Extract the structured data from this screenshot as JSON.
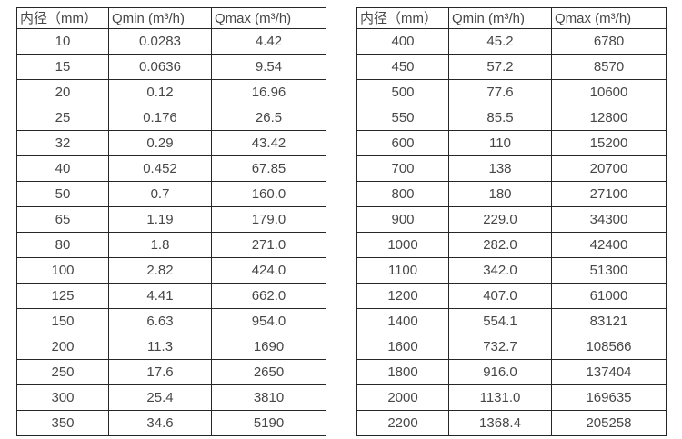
{
  "page": {
    "background_color": "#ffffff",
    "text_color": "#474747",
    "border_color": "#262626"
  },
  "tables": [
    {
      "name": "flow-table-small-diameters",
      "headers": [
        "内径（mm）",
        "Qmin (m³/h)",
        "Qmax (m³/h)"
      ],
      "rows": [
        [
          "10",
          "0.0283",
          "4.42"
        ],
        [
          "15",
          "0.0636",
          "9.54"
        ],
        [
          "20",
          "0.12",
          "16.96"
        ],
        [
          "25",
          "0.176",
          "26.5"
        ],
        [
          "32",
          "0.29",
          "43.42"
        ],
        [
          "40",
          "0.452",
          "67.85"
        ],
        [
          "50",
          "0.7",
          "160.0"
        ],
        [
          "65",
          "1.19",
          "179.0"
        ],
        [
          "80",
          "1.8",
          "271.0"
        ],
        [
          "100",
          "2.82",
          "424.0"
        ],
        [
          "125",
          "4.41",
          "662.0"
        ],
        [
          "150",
          "6.63",
          "954.0"
        ],
        [
          "200",
          "11.3",
          "1690"
        ],
        [
          "250",
          "17.6",
          "2650"
        ],
        [
          "300",
          "25.4",
          "3810"
        ],
        [
          "350",
          "34.6",
          "5190"
        ]
      ]
    },
    {
      "name": "flow-table-large-diameters",
      "headers": [
        "内径（mm）",
        "Qmin (m³/h)",
        "Qmax (m³/h)"
      ],
      "rows": [
        [
          "400",
          "45.2",
          "6780"
        ],
        [
          "450",
          "57.2",
          "8570"
        ],
        [
          "500",
          "77.6",
          "10600"
        ],
        [
          "550",
          "85.5",
          "12800"
        ],
        [
          "600",
          "110",
          "15200"
        ],
        [
          "700",
          "138",
          "20700"
        ],
        [
          "800",
          "180",
          "27100"
        ],
        [
          "900",
          "229.0",
          "34300"
        ],
        [
          "1000",
          "282.0",
          "42400"
        ],
        [
          "1100",
          "342.0",
          "51300"
        ],
        [
          "1200",
          "407.0",
          "61000"
        ],
        [
          "1400",
          "554.1",
          "83121"
        ],
        [
          "1600",
          "732.7",
          "108566"
        ],
        [
          "1800",
          "916.0",
          "137404"
        ],
        [
          "2000",
          "1131.0",
          "169635"
        ],
        [
          "2200",
          "1368.4",
          "205258"
        ]
      ]
    }
  ]
}
